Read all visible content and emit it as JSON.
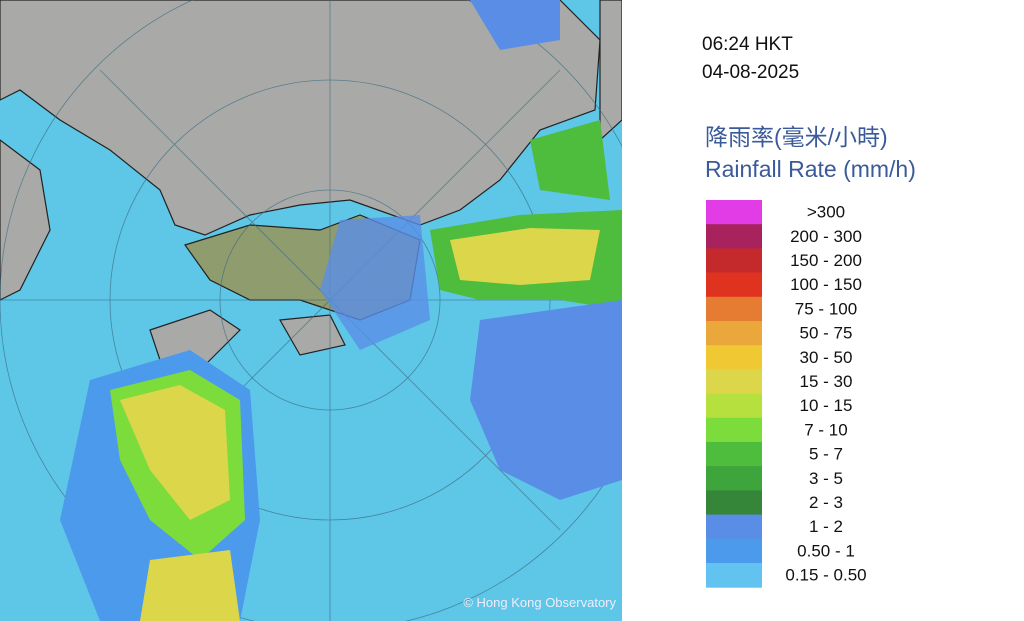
{
  "header": {
    "time": "06:24 HKT",
    "date": "04-08-2025"
  },
  "legend": {
    "title_zh": "降雨率(毫米/小時)",
    "title_en": "Rainfall Rate (mm/h)",
    "items": [
      {
        "label": ">300",
        "color": "#e23ce6"
      },
      {
        "label": "200 - 300",
        "color": "#a8225e"
      },
      {
        "label": "150 - 200",
        "color": "#c42a2c"
      },
      {
        "label": "100 - 150",
        "color": "#e0331f"
      },
      {
        "label": "75 - 100",
        "color": "#e57c32"
      },
      {
        "label": "50 - 75",
        "color": "#eaa83c"
      },
      {
        "label": "30 - 50",
        "color": "#f0c834"
      },
      {
        "label": "15 - 30",
        "color": "#dcd64a"
      },
      {
        "label": "10 - 15",
        "color": "#b6e03e"
      },
      {
        "label": "7 - 10",
        "color": "#7cdc3c"
      },
      {
        "label": "5 - 7",
        "color": "#4ebc3c"
      },
      {
        "label": "3 - 5",
        "color": "#3ea43c"
      },
      {
        "label": "2 - 3",
        "color": "#36863a"
      },
      {
        "label": "1 - 2",
        "color": "#5a8ee6"
      },
      {
        "label": "0.50 - 1",
        "color": "#4c9aec"
      },
      {
        "label": "0.15 - 0.50",
        "color": "#62c2f0"
      }
    ]
  },
  "credit": "© Hong Kong Observatory"
}
